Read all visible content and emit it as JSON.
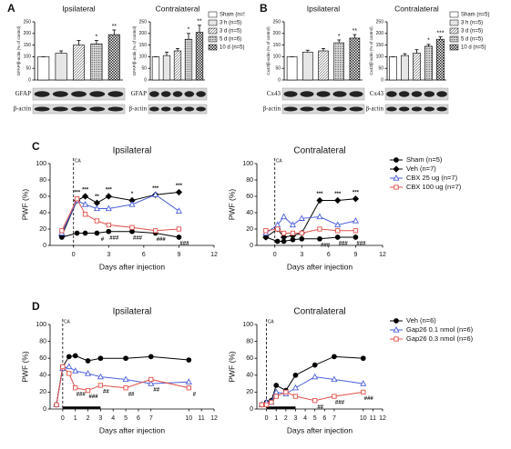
{
  "chart_data": [
    {
      "panel": "A",
      "type": "bar",
      "title": "Ipsilateral",
      "ylabel": "GFAP/β-actin (% of control)",
      "categories": [
        null,
        null,
        null,
        null,
        null
      ],
      "values": [
        100,
        115,
        150,
        155,
        195
      ],
      "errors": [
        0,
        10,
        20,
        15,
        20
      ],
      "annotations": [
        null,
        null,
        null,
        "*",
        "**"
      ],
      "ylim": [
        0,
        250
      ],
      "yticks": [
        0,
        50,
        100,
        150,
        200,
        250
      ],
      "fills": [
        "#ffffff",
        "#e6e6e6",
        "url(#hatch)",
        "url(#dots)",
        "url(#check)"
      ],
      "blot_labels": [
        "GFAP",
        "β-actin"
      ]
    },
    {
      "type": "bar",
      "title": "Contralateral",
      "ylabel": "GFAP/β-actin (% of control)",
      "categories": [
        "Sham (n=!",
        "3 h (n=5)",
        "3 d (n=5)",
        "5 d (n=6)",
        "10 d (n=5)"
      ],
      "values": [
        100,
        105,
        125,
        175,
        205
      ],
      "errors": [
        0,
        15,
        10,
        25,
        30
      ],
      "annotations": [
        null,
        null,
        null,
        "*",
        "**"
      ],
      "ylim": [
        0,
        250
      ],
      "yticks": [
        0,
        50,
        100,
        150,
        200,
        250
      ],
      "fills": [
        "#ffffff",
        "#e6e6e6",
        "url(#hatch)",
        "url(#dots)",
        "url(#check)"
      ],
      "blot_labels": [
        "GFAP",
        "β-actin"
      ],
      "legend": "right"
    },
    {
      "panel": "B",
      "type": "bar",
      "title": "Ipsilateral",
      "ylabel": "Cx43/β-actin (% of control)",
      "categories": [
        null,
        null,
        null,
        null,
        null
      ],
      "values": [
        100,
        120,
        125,
        160,
        180
      ],
      "errors": [
        0,
        8,
        10,
        12,
        15
      ],
      "annotations": [
        null,
        null,
        null,
        "*",
        "**"
      ],
      "ylim": [
        0,
        250
      ],
      "yticks": [
        0,
        50,
        100,
        150,
        200,
        250
      ],
      "fills": [
        "#ffffff",
        "#e6e6e6",
        "url(#hatch)",
        "url(#dots)",
        "url(#check)"
      ],
      "blot_labels": [
        "Cx43",
        "β-actin"
      ]
    },
    {
      "type": "bar",
      "title": "Contralateral",
      "ylabel": "Cx43/β-actin (% of control)",
      "categories": [
        "Sham (n=5)",
        "3 h (n=5)",
        "3 d (n=5)",
        "5 d (n=5)",
        "10 d (n=5)"
      ],
      "values": [
        100,
        105,
        115,
        145,
        175
      ],
      "errors": [
        0,
        8,
        15,
        8,
        10
      ],
      "annotations": [
        null,
        null,
        null,
        "*",
        "***"
      ],
      "ylim": [
        0,
        250
      ],
      "yticks": [
        0,
        50,
        100,
        150,
        200,
        250
      ],
      "fills": [
        "#ffffff",
        "#e6e6e6",
        "url(#hatch)",
        "url(#dots)",
        "url(#check)"
      ],
      "blot_labels": [
        "Cx43",
        "β-actin"
      ],
      "legend": "right"
    },
    {
      "panel": "C",
      "type": "line",
      "title": "Ipsilateral",
      "xlabel": "Days after injection",
      "ylabel": "PWF (%)",
      "x": [
        -1,
        0.3,
        1,
        2,
        3,
        5,
        7,
        9
      ],
      "xlim": [
        -2,
        12
      ],
      "xticks": [
        0,
        3,
        6,
        9,
        12
      ],
      "ylim": [
        0,
        100
      ],
      "yticks": [
        0,
        20,
        40,
        60,
        80,
        100
      ],
      "vline": 0,
      "vline_label": "CA",
      "series": [
        {
          "color": "#000000",
          "marker": "circle",
          "filled": true,
          "values": [
            10,
            15,
            15,
            15,
            17,
            17,
            15,
            10
          ]
        },
        {
          "color": "#000000",
          "marker": "diamond",
          "filled": true,
          "values": [
            12,
            55,
            60,
            52,
            60,
            55,
            62,
            65
          ]
        },
        {
          "color": "#4a5fd8",
          "marker": "triangle",
          "filled": false,
          "values": [
            15,
            55,
            50,
            45,
            45,
            50,
            62,
            42
          ]
        },
        {
          "color": "#e0504a",
          "marker": "square",
          "filled": false,
          "values": [
            18,
            57,
            38,
            30,
            25,
            22,
            18,
            20
          ]
        }
      ],
      "annotations_above": [
        null,
        "***",
        "***",
        "**",
        "***",
        "*",
        "***",
        "***"
      ],
      "annotations_below": [
        null,
        null,
        null,
        "#",
        "###",
        "###",
        "###",
        "###"
      ]
    },
    {
      "type": "line",
      "title": "Contralateral",
      "xlabel": "Days after injection",
      "ylabel": "PWF (%)",
      "x": [
        -1,
        0.3,
        1,
        2,
        3,
        5,
        7,
        9
      ],
      "xlim": [
        -2,
        12
      ],
      "xticks": [
        0,
        3,
        6,
        9,
        12
      ],
      "ylim": [
        0,
        100
      ],
      "yticks": [
        0,
        20,
        40,
        60,
        80,
        100
      ],
      "vline": 0,
      "vline_label": "CA",
      "legend": "right",
      "series": [
        {
          "name": "Sham (n=5)",
          "color": "#000000",
          "marker": "circle",
          "filled": true,
          "values": [
            10,
            5,
            5,
            7,
            8,
            8,
            10,
            10
          ]
        },
        {
          "name": "Veh (n=7)",
          "color": "#000000",
          "marker": "diamond",
          "filled": true,
          "values": [
            10,
            20,
            10,
            12,
            15,
            55,
            55,
            57
          ]
        },
        {
          "name": "CBX 25 ug (n=7)",
          "color": "#4a5fd8",
          "marker": "triangle",
          "filled": false,
          "values": [
            15,
            25,
            35,
            25,
            33,
            35,
            25,
            30
          ]
        },
        {
          "name": "CBX 100 ug (n=7)",
          "color": "#e0504a",
          "marker": "square",
          "filled": false,
          "values": [
            18,
            20,
            15,
            15,
            15,
            20,
            18,
            18
          ]
        }
      ],
      "annotations_above": [
        null,
        null,
        null,
        null,
        null,
        "***",
        "***",
        "***"
      ],
      "annotations_below": [
        null,
        null,
        null,
        null,
        null,
        "###",
        "###",
        "###"
      ]
    },
    {
      "panel": "D",
      "type": "line",
      "title": "Ipsilateral",
      "xlabel": "Days after injection",
      "ylabel": "PWF (%)",
      "x": [
        -0.5,
        0,
        0.5,
        1,
        2,
        3,
        5,
        7,
        10
      ],
      "xlim": [
        -1,
        12
      ],
      "xticks": [
        0,
        1,
        2,
        3,
        4,
        5,
        6,
        7,
        10,
        11,
        12
      ],
      "ylim": [
        0,
        100
      ],
      "yticks": [
        0,
        20,
        40,
        60,
        80,
        100
      ],
      "vline": 0,
      "vline_label": "CA",
      "bar_range": [
        0,
        3
      ],
      "series": [
        {
          "color": "#000000",
          "marker": "circle",
          "filled": true,
          "values": [
            5,
            50,
            62,
            63,
            57,
            60,
            60,
            62,
            58
          ]
        },
        {
          "color": "#4a5fd8",
          "marker": "triangle",
          "filled": false,
          "values": [
            5,
            48,
            50,
            45,
            42,
            38,
            35,
            30,
            32
          ]
        },
        {
          "color": "#e0504a",
          "marker": "square",
          "filled": false,
          "values": [
            5,
            50,
            42,
            25,
            22,
            28,
            25,
            35,
            25
          ]
        }
      ],
      "annotations_above": [
        null,
        null,
        null,
        null,
        null,
        null,
        null,
        null,
        null
      ],
      "annotations_below": [
        null,
        null,
        null,
        "###",
        "###",
        "##",
        "##",
        "##",
        "#"
      ]
    },
    {
      "type": "line",
      "title": "Contralateral",
      "xlabel": "Days after injection",
      "ylabel": "PWF (%)",
      "x": [
        -0.5,
        0,
        0.5,
        1,
        2,
        3,
        5,
        7,
        10
      ],
      "xlim": [
        -1,
        12
      ],
      "xticks": [
        0,
        1,
        2,
        3,
        4,
        5,
        6,
        7,
        10,
        11,
        12
      ],
      "ylim": [
        0,
        100
      ],
      "yticks": [
        0,
        20,
        40,
        60,
        80,
        100
      ],
      "vline": 0,
      "vline_label": "CA",
      "bar_range": [
        0,
        3
      ],
      "legend": "right",
      "series": [
        {
          "name": "Veh (n=6)",
          "color": "#000000",
          "marker": "circle",
          "filled": true,
          "values": [
            5,
            8,
            10,
            28,
            22,
            40,
            52,
            62,
            60
          ]
        },
        {
          "name": "Gap26 0.1 nmol (n=6)",
          "color": "#4a5fd8",
          "marker": "triangle",
          "filled": false,
          "values": [
            5,
            8,
            8,
            20,
            18,
            25,
            38,
            35,
            30
          ]
        },
        {
          "name": "Gap26 0.3 nmol (n=6)",
          "color": "#e0504a",
          "marker": "square",
          "filled": false,
          "values": [
            5,
            5,
            8,
            15,
            20,
            15,
            10,
            15,
            20
          ]
        }
      ],
      "annotations_above": [
        null,
        null,
        null,
        null,
        null,
        null,
        null,
        null,
        null
      ],
      "annotations_below": [
        null,
        null,
        null,
        null,
        null,
        null,
        "##",
        "###",
        "###"
      ]
    }
  ]
}
